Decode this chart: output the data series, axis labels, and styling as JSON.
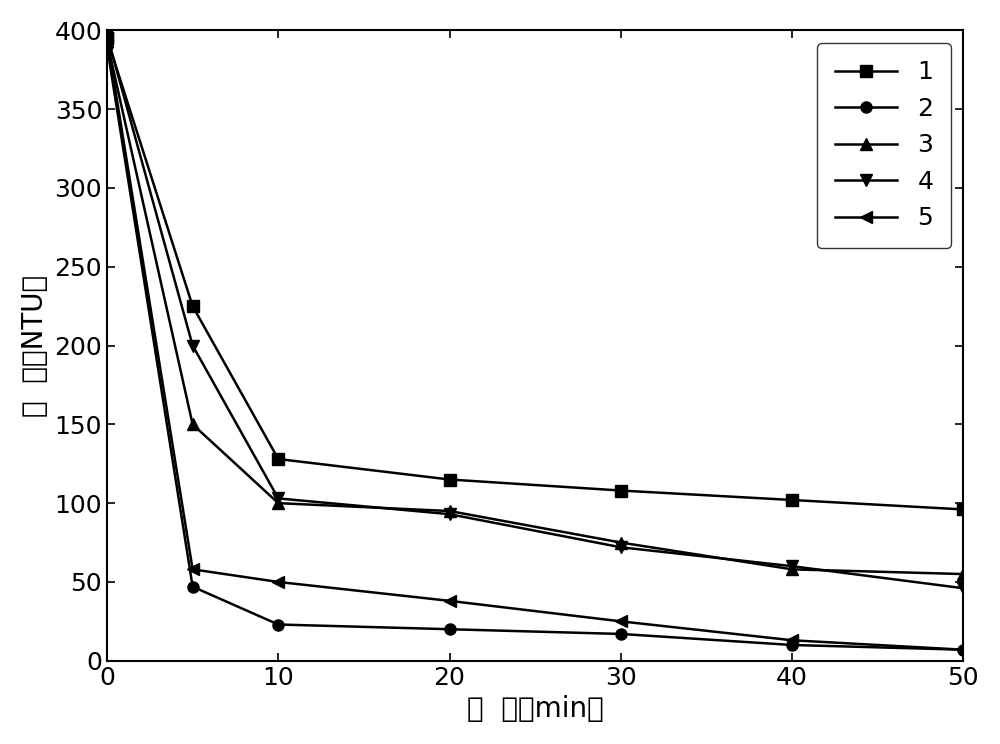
{
  "x": [
    0,
    5,
    10,
    20,
    30,
    40,
    50
  ],
  "series": [
    {
      "label": "1",
      "marker": "s",
      "values": [
        395,
        225,
        128,
        115,
        108,
        102,
        96
      ],
      "markersize": 8
    },
    {
      "label": "2",
      "marker": "o",
      "values": [
        390,
        47,
        23,
        20,
        17,
        10,
        7
      ],
      "markersize": 8
    },
    {
      "label": "3",
      "marker": "^",
      "values": [
        393,
        150,
        100,
        95,
        75,
        58,
        55
      ],
      "markersize": 8
    },
    {
      "label": "4",
      "marker": "v",
      "values": [
        397,
        200,
        103,
        93,
        72,
        60,
        46
      ],
      "markersize": 8
    },
    {
      "label": "5",
      "marker": "<",
      "values": [
        395,
        58,
        50,
        38,
        25,
        13,
        7
      ],
      "markersize": 8
    }
  ],
  "xlabel": "时  间（min）",
  "ylabel": "浊  度（NTU）",
  "xlim": [
    0,
    50
  ],
  "ylim": [
    0,
    400
  ],
  "xticks": [
    0,
    10,
    20,
    30,
    40,
    50
  ],
  "yticks": [
    0,
    50,
    100,
    150,
    200,
    250,
    300,
    350,
    400
  ],
  "line_color": "#000000",
  "background_color": "#ffffff",
  "legend_loc": "upper right",
  "xlabel_fontsize": 20,
  "ylabel_fontsize": 20,
  "tick_fontsize": 18,
  "legend_fontsize": 18
}
